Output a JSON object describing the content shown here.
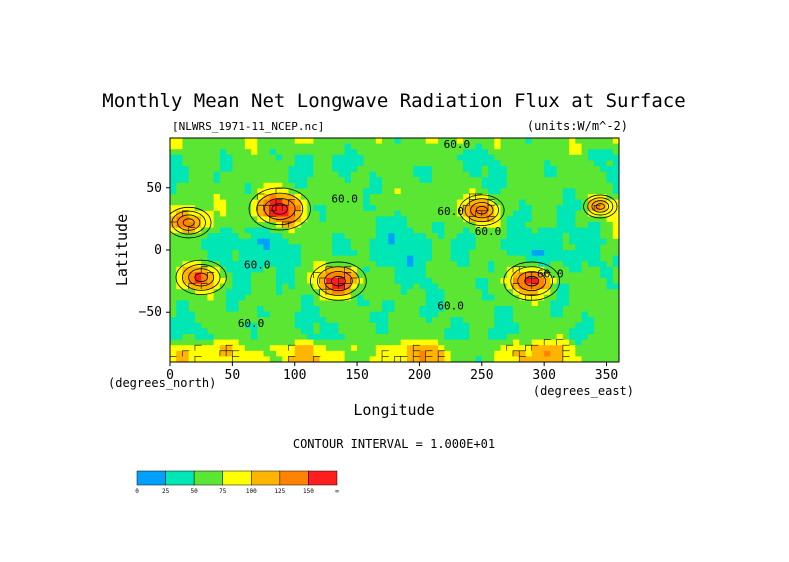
{
  "chart_data": {
    "type": "heatmap",
    "title": "Monthly Mean Net Longwave Radiation Flux at Surface",
    "file_label": "[NLWRS_1971-11_NCEP.nc]",
    "units_label": "(units:W/m^-2)",
    "xlabel": "Longitude",
    "ylabel": "Latitude",
    "x_unit_label": "(degrees_east)",
    "y_unit_label": "(degrees_north)",
    "xlim": [
      0,
      360
    ],
    "ylim": [
      -90,
      90
    ],
    "x_ticks": [
      0,
      50,
      100,
      150,
      200,
      250,
      300,
      350
    ],
    "y_ticks": [
      -50,
      0,
      50
    ],
    "contour_interval_text": "CONTOUR INTERVAL = 1.000E+01",
    "contour_labels": [
      {
        "text": "60.0",
        "lon": 230,
        "lat": 82
      },
      {
        "text": "60.0",
        "lon": 140,
        "lat": 38
      },
      {
        "text": "60.0",
        "lon": 225,
        "lat": 28
      },
      {
        "text": "60.0",
        "lon": 255,
        "lat": 12
      },
      {
        "text": "60.0",
        "lon": 70,
        "lat": -15
      },
      {
        "text": "60.0",
        "lon": 305,
        "lat": -22
      },
      {
        "text": "60.0",
        "lon": 225,
        "lat": -48
      },
      {
        "text": "60.0",
        "lon": 65,
        "lat": -62
      }
    ],
    "hotspots": [
      {
        "lon": 88,
        "lat": 33,
        "size": 1.1
      },
      {
        "lon": 15,
        "lat": 22,
        "size": 0.8
      },
      {
        "lon": 25,
        "lat": -22,
        "size": 0.9
      },
      {
        "lon": 135,
        "lat": -25,
        "size": 1.0
      },
      {
        "lon": 250,
        "lat": 32,
        "size": 0.8
      },
      {
        "lon": 290,
        "lat": -25,
        "size": 1.0
      },
      {
        "lon": 345,
        "lat": 35,
        "size": 0.6
      }
    ],
    "colorbar": {
      "levels": [
        "0",
        "25",
        "50",
        "75",
        "100",
        "125",
        "150",
        "∞"
      ],
      "colors": [
        "#00a0ff",
        "#00e6b4",
        "#5ae632",
        "#ffff00",
        "#ffb400",
        "#ff8200",
        "#ff1e1e"
      ]
    }
  }
}
